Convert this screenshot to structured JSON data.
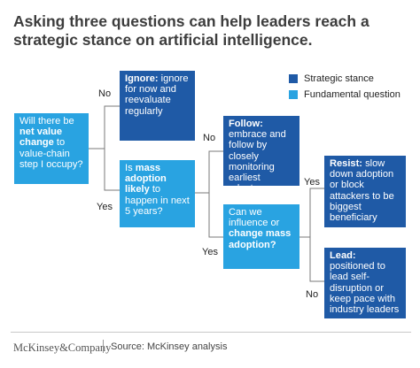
{
  "title": "Asking three questions can help leaders reach a strategic stance on artificial intelligence.",
  "legend": [
    {
      "label": "Strategic stance",
      "color": "#1f5aa6"
    },
    {
      "label": "Fundamental question",
      "color": "#29a3e1"
    }
  ],
  "nodes": {
    "q1": {
      "parts": [
        {
          "text": "Will there be ",
          "bold": false
        },
        {
          "text": "net value change",
          "bold": true
        },
        {
          "text": " to value-chain step I occupy?",
          "bold": false
        }
      ]
    },
    "ignore": {
      "parts": [
        {
          "text": "Ignore:",
          "bold": true
        },
        {
          "text": " ignore for now and reevaluate regularly",
          "bold": false
        }
      ]
    },
    "q2": {
      "parts": [
        {
          "text": "Is ",
          "bold": false
        },
        {
          "text": "mass adoption likely",
          "bold": true
        },
        {
          "text": " to happen in next 5 years?",
          "bold": false
        }
      ]
    },
    "follow": {
      "parts": [
        {
          "text": "Follow:",
          "bold": true
        },
        {
          "text": " embrace and follow by closely monitoring earliest adopters",
          "bold": false
        }
      ]
    },
    "q3": {
      "parts": [
        {
          "text": "Can we influence or ",
          "bold": false
        },
        {
          "text": "change mass adoption?",
          "bold": true
        }
      ]
    },
    "resist": {
      "parts": [
        {
          "text": "Resist:",
          "bold": true
        },
        {
          "text": " slow down adoption or block attackers to be biggest beneficiary",
          "bold": false
        }
      ]
    },
    "lead": {
      "parts": [
        {
          "text": "Lead:",
          "bold": true
        },
        {
          "text": " positioned to lead self-disruption or keep pace with industry leaders",
          "bold": false
        }
      ]
    }
  },
  "edges": {
    "q1_no": "No",
    "q1_yes": "Yes",
    "q2_no": "No",
    "q2_yes": "Yes",
    "q3_yes": "Yes",
    "q3_no": "No"
  },
  "footer": {
    "brand": "McKinsey&Company",
    "source": "Source: McKinsey analysis"
  },
  "colors": {
    "strategic": "#1f5aa6",
    "fundamental": "#29a3e1",
    "connector": "#7a7a7a"
  }
}
